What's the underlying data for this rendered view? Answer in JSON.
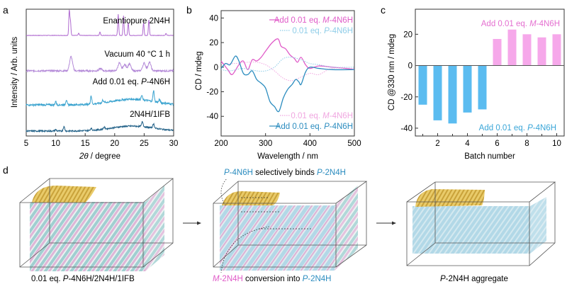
{
  "panel_labels": {
    "a": "a",
    "b": "b",
    "c": "c",
    "d": "d"
  },
  "chart_data": [
    {
      "panel": "a",
      "type": "line",
      "xlabel_italic": "2θ",
      "xlabel_rest": " / degree",
      "ylabel": "Intensity / Arb. units",
      "xlim": [
        5,
        30
      ],
      "xticks": [
        5,
        10,
        15,
        20,
        25,
        30
      ],
      "series": [
        {
          "name": "Enantiopure 2N4H",
          "color": "#b06bd0",
          "noise": 0.3,
          "width": 0.12,
          "peaks": [
            [
              12.3,
              35
            ],
            [
              12.5,
              20
            ],
            [
              13.9,
              3
            ],
            [
              17.5,
              5
            ],
            [
              20.6,
              30
            ],
            [
              21.5,
              28
            ],
            [
              22.3,
              18
            ],
            [
              24.9,
              18
            ],
            [
              25.8,
              22
            ],
            [
              28.7,
              3
            ]
          ]
        },
        {
          "name": "Vacuum 40 °C 1 h",
          "color": "#b48ad8",
          "noise": 1.2,
          "width": 0.35,
          "peaks": [
            [
              12.6,
              20
            ],
            [
              17.6,
              3
            ],
            [
              20.8,
              11
            ],
            [
              21.7,
              9
            ],
            [
              22.5,
              10
            ],
            [
              25.0,
              11
            ],
            [
              25.9,
              12
            ]
          ]
        },
        {
          "name_prefix": "Add 0.01 eq. ",
          "name_italic": "P",
          "name_suffix": "-4N6H",
          "color": "#3aa3cf",
          "noise": 1.4,
          "width": 0.15,
          "hump": 8,
          "peaks": [
            [
              10.0,
              5
            ],
            [
              11.8,
              7
            ],
            [
              16.0,
              12
            ],
            [
              18.0,
              4
            ],
            [
              24.6,
              6
            ],
            [
              26.6,
              16
            ],
            [
              27.6,
              4
            ]
          ]
        },
        {
          "name": "2N4H/1IFB",
          "color": "#1f5f86",
          "noise": 1.0,
          "width": 0.18,
          "hump": 7,
          "peaks": [
            [
              10.0,
              2
            ],
            [
              11.4,
              6
            ],
            [
              16.0,
              3
            ],
            [
              18.2,
              3
            ],
            [
              24.7,
              7
            ],
            [
              26.6,
              6
            ]
          ]
        }
      ]
    },
    {
      "panel": "b",
      "type": "line",
      "xlabel": "Wavelength / nm",
      "ylabel": "CD / mdeg",
      "xlim": [
        200,
        500
      ],
      "ylim": [
        -56,
        46
      ],
      "xticks": [
        200,
        300,
        400,
        500
      ],
      "yticks": [
        40,
        20,
        0,
        -20,
        -40
      ],
      "series": [
        {
          "prefix": "Add 0.01 eq. ",
          "italic": "M",
          "suffix": "-4N6H",
          "color": "#e05bc8",
          "style": "solid",
          "legend": "top",
          "x": [
            200,
            215,
            225,
            240,
            250,
            260,
            270,
            280,
            290,
            300,
            315,
            328,
            335,
            345,
            355,
            365,
            372,
            380,
            390,
            400,
            420,
            450,
            480,
            500
          ],
          "y": [
            5,
            -2,
            -6,
            2,
            5,
            -2,
            6,
            5,
            8,
            13,
            20,
            23,
            17,
            15,
            10,
            7,
            4,
            8,
            2,
            -1,
            1,
            0,
            -1,
            -2
          ]
        },
        {
          "prefix": "0.01 eq. ",
          "italic": "P",
          "suffix": "-4N6H",
          "color": "#8fcde8",
          "style": "dotted",
          "legend": "top",
          "x": [
            200,
            220,
            250,
            280,
            300,
            320,
            340,
            360,
            380,
            400,
            420,
            450,
            500
          ],
          "y": [
            -2,
            -3,
            -1,
            -3,
            -3,
            0,
            7,
            8,
            6,
            3,
            2,
            0,
            0
          ]
        },
        {
          "prefix": "0.01 eq. ",
          "italic": "M",
          "suffix": "-4N6H",
          "color": "#f0a6e0",
          "style": "dotted",
          "legend": "bottom",
          "x": [
            200,
            230,
            260,
            280,
            300,
            320,
            340,
            360,
            380,
            400,
            420,
            450,
            500
          ],
          "y": [
            3,
            3,
            4,
            4,
            2,
            -3,
            -9,
            -11,
            -8,
            -5,
            -6,
            -1,
            -1
          ]
        },
        {
          "prefix": "Add 0.01 eq. ",
          "italic": "P",
          "suffix": "-4N6H",
          "color": "#2b8cbf",
          "style": "solid",
          "legend": "bottom",
          "x": [
            200,
            210,
            220,
            232,
            240,
            250,
            260,
            270,
            280,
            290,
            300,
            310,
            320,
            330,
            340,
            350,
            360,
            368,
            375,
            380,
            390,
            400,
            420,
            450,
            500
          ],
          "y": [
            -1,
            3,
            2,
            9,
            5,
            -5,
            -6,
            -3,
            -10,
            -13,
            -17,
            -28,
            -32,
            -36,
            -25,
            -18,
            -14,
            -10,
            -12,
            -14,
            -4,
            0,
            -1,
            -2,
            -2
          ]
        }
      ]
    },
    {
      "panel": "c",
      "type": "bar",
      "xlabel": "Batch number",
      "ylabel": "CD @330 nm / mdeg",
      "categories": [
        1,
        2,
        3,
        4,
        5,
        6,
        7,
        8,
        9,
        10
      ],
      "values": [
        -25,
        -35,
        -37,
        -30,
        -28,
        17,
        23,
        20,
        18,
        20
      ],
      "colors": {
        "negative": "#5bbcf0",
        "positive": "#f6a8ea"
      },
      "xticks": [
        2,
        4,
        6,
        8,
        10
      ],
      "yticks": [
        20,
        0,
        -20,
        -40
      ],
      "ylim": [
        -45,
        36
      ],
      "annotations": [
        {
          "prefix": "Add 0.01 eq. ",
          "italic": "M",
          "suffix": "-4N6H",
          "color": "#e46fd0"
        },
        {
          "prefix": "Add 0.01 eq. ",
          "italic": "P",
          "suffix": "-4N6H",
          "color": "#3aa6d8"
        }
      ]
    }
  ],
  "diagram": {
    "captions": {
      "left_prefix": "0.01 eq. ",
      "left_italic": "P",
      "left_suffix": "-4N6H/2N4H/1IFB",
      "top_italic1": "P",
      "top_mid1": "-4N6H",
      "top_plain": " selectively binds ",
      "top_italic2": "P",
      "top_mid2": "-2N4H",
      "bottom_italic1": "M",
      "bottom_mid1": "-2N4H",
      "bottom_plain": " conversion into ",
      "bottom_italic2": "P",
      "bottom_mid2": "-2N4H",
      "right_italic": "P",
      "right_suffix": "-2N4H aggregate"
    },
    "colors": {
      "gold": "#d9b64a",
      "teal": "#8fc7c9",
      "pink": "#d9a8d0",
      "blue": "#a9d4e4",
      "magenta_text": "#e05bc8",
      "blue_text": "#2b8cbf"
    }
  }
}
